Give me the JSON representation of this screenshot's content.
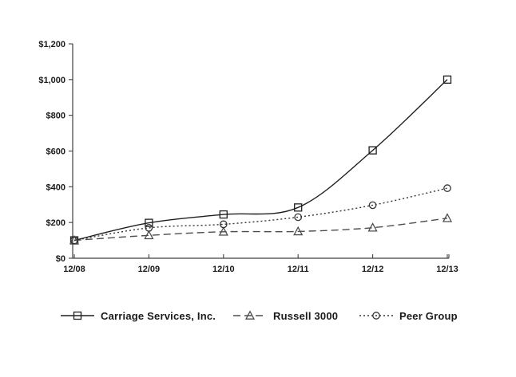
{
  "chart": {
    "background": "#ffffff"
  },
  "chart_data": {
    "type": "line",
    "title": "",
    "xlabel": "",
    "ylabel": "",
    "categories": [
      "12/08",
      "12/09",
      "12/10",
      "12/11",
      "12/12",
      "12/13"
    ],
    "series": [
      {
        "name": "Carriage Services, Inc.",
        "marker": "square",
        "line_style": "solid",
        "color": "#1f1f1f",
        "values": [
          100,
          198,
          245,
          284,
          604,
          1000
        ]
      },
      {
        "name": "Russell 3000",
        "marker": "triangle",
        "line_style": "dashed",
        "color": "#4d4d4d",
        "values": [
          100,
          128,
          148,
          150,
          171,
          224
        ]
      },
      {
        "name": "Peer Group",
        "marker": "circle",
        "line_style": "dotted",
        "color": "#333333",
        "values": [
          100,
          170,
          190,
          230,
          297,
          392
        ]
      }
    ],
    "ylim": [
      0,
      1200
    ],
    "ytick_step": 200,
    "ytick_labels": [
      "$0",
      "$200",
      "$400",
      "$600",
      "$800",
      "$1,000",
      "$1,200"
    ],
    "grid": false,
    "legend_position": "bottom",
    "axis_color": "#404040",
    "label_color": "#1a1a1a"
  }
}
